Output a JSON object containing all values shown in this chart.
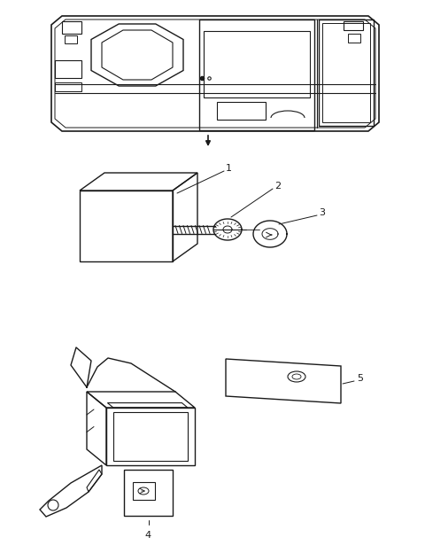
{
  "bg_color": "#ffffff",
  "line_color": "#1a1a1a",
  "fig_width": 4.8,
  "fig_height": 6.24,
  "dpi": 100
}
